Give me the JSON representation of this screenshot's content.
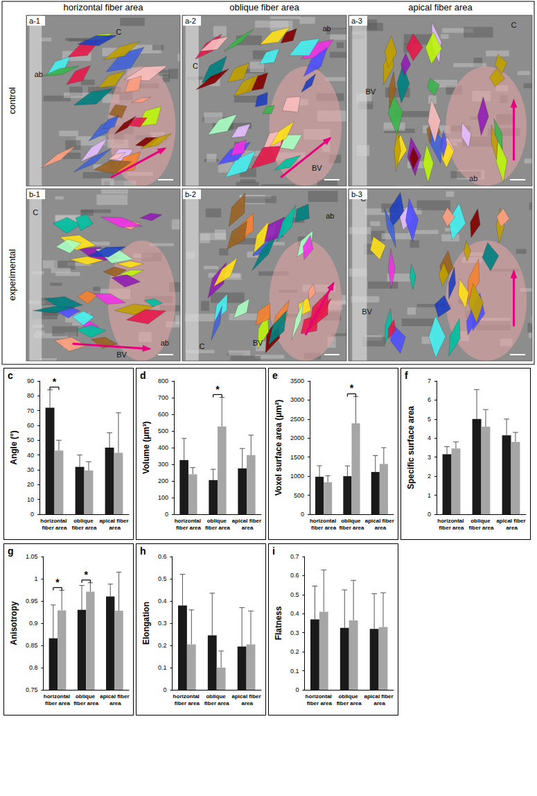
{
  "figure": {
    "columns": [
      "horizontal fiber area",
      "oblique fiber area",
      "apical fiber area"
    ],
    "rows": [
      "control",
      "experimental"
    ],
    "panels": [
      {
        "id": "a-1",
        "labels": [
          "C",
          "ab"
        ]
      },
      {
        "id": "a-2",
        "labels": [
          "C",
          "ab",
          "BV"
        ]
      },
      {
        "id": "a-3",
        "labels": [
          "C",
          "BV",
          "ab"
        ]
      },
      {
        "id": "b-1",
        "labels": [
          "C",
          "BV",
          "ab"
        ]
      },
      {
        "id": "b-2",
        "labels": [
          "C",
          "BV",
          "ab"
        ]
      },
      {
        "id": "b-3",
        "labels": [
          "C",
          "BV"
        ]
      }
    ]
  },
  "chart_data": [
    {
      "type": "bar",
      "panel_label": "c",
      "ylabel": "Angle (°)",
      "categories": [
        "horizontal fiber area",
        "oblique fiber area",
        "apical fiber area"
      ],
      "series": [
        {
          "name": "control",
          "color": "#1a1a1a",
          "values": [
            72,
            32,
            45
          ],
          "errors": [
            12,
            8,
            10
          ]
        },
        {
          "name": "experimental",
          "color": "#a6a6a6",
          "values": [
            43,
            29.5,
            41.5
          ],
          "errors": [
            7,
            6,
            27
          ]
        }
      ],
      "ylim": [
        0,
        90
      ],
      "yticks": [
        0,
        10,
        20,
        30,
        40,
        50,
        60,
        70,
        80,
        90
      ],
      "annotations": [
        {
          "text": "*",
          "category": "horizontal fiber area"
        }
      ]
    },
    {
      "type": "bar",
      "panel_label": "d",
      "ylabel": "Volume (μm³)",
      "categories": [
        "horizontal fiber area",
        "oblique fiber area",
        "apical fiber area"
      ],
      "series": [
        {
          "name": "control",
          "color": "#1a1a1a",
          "values": [
            325,
            205,
            275
          ],
          "errors": [
            130,
            65,
            120
          ]
        },
        {
          "name": "experimental",
          "color": "#a6a6a6",
          "values": [
            240,
            527,
            355
          ],
          "errors": [
            40,
            175,
            120
          ]
        }
      ],
      "ylim": [
        0,
        800
      ],
      "yticks": [
        0,
        100,
        200,
        300,
        400,
        500,
        600,
        700,
        800
      ],
      "annotations": [
        {
          "text": "*",
          "category": "oblique fiber area"
        }
      ]
    },
    {
      "type": "bar",
      "panel_label": "e",
      "ylabel": "Voxel surface area (μm²)",
      "categories": [
        "horizontal fiber area",
        "oblique fiber area",
        "apical fiber area"
      ],
      "series": [
        {
          "name": "control",
          "color": "#1a1a1a",
          "values": [
            985,
            1000,
            1110
          ],
          "errors": [
            290,
            270,
            430
          ]
        },
        {
          "name": "experimental",
          "color": "#a6a6a6",
          "values": [
            840,
            2390,
            1320
          ],
          "errors": [
            170,
            700,
            430
          ]
        }
      ],
      "ylim": [
        0,
        3500
      ],
      "yticks": [
        0,
        500,
        1000,
        1500,
        2000,
        2500,
        3000,
        3500
      ],
      "annotations": [
        {
          "text": "*",
          "category": "oblique fiber area"
        }
      ]
    },
    {
      "type": "bar",
      "panel_label": "f",
      "ylabel": "Specific surface area",
      "categories": [
        "horizontal fiber area",
        "oblique fiber area",
        "apical fiber area"
      ],
      "series": [
        {
          "name": "control",
          "color": "#1a1a1a",
          "values": [
            3.15,
            5.0,
            4.15
          ],
          "errors": [
            0.4,
            1.55,
            0.85
          ]
        },
        {
          "name": "experimental",
          "color": "#a6a6a6",
          "values": [
            3.45,
            4.6,
            3.8
          ],
          "errors": [
            0.35,
            0.9,
            0.5
          ]
        }
      ],
      "ylim": [
        0,
        7
      ],
      "yticks": [
        0,
        1,
        2,
        3,
        4,
        5,
        6,
        7
      ],
      "annotations": []
    },
    {
      "type": "bar",
      "panel_label": "g",
      "ylabel": "Anisotropy",
      "categories": [
        "horizontal fiber area",
        "oblique fiber area",
        "apical fiber area"
      ],
      "series": [
        {
          "name": "control",
          "color": "#1a1a1a",
          "values": [
            0.866,
            0.93,
            0.96
          ],
          "errors": [
            0.075,
            0.055,
            0.028
          ]
        },
        {
          "name": "experimental",
          "color": "#a6a6a6",
          "values": [
            0.929,
            0.971,
            0.928
          ],
          "errors": [
            0.045,
            0.02,
            0.087
          ]
        }
      ],
      "ylim": [
        0.75,
        1.05
      ],
      "yticks": [
        0.75,
        0.8,
        0.85,
        0.9,
        0.95,
        1,
        1.05
      ],
      "annotations": [
        {
          "text": "*",
          "category": "horizontal fiber area"
        },
        {
          "text": "*",
          "category": "oblique fiber area"
        }
      ]
    },
    {
      "type": "bar",
      "panel_label": "h",
      "ylabel": "Elongation",
      "categories": [
        "horizontal fiber area",
        "oblique fiber area",
        "apical fiber area"
      ],
      "series": [
        {
          "name": "control",
          "color": "#1a1a1a",
          "values": [
            0.38,
            0.245,
            0.195
          ],
          "errors": [
            0.14,
            0.19,
            0.175
          ]
        },
        {
          "name": "experimental",
          "color": "#a6a6a6",
          "values": [
            0.205,
            0.1,
            0.205
          ],
          "errors": [
            0.155,
            0.075,
            0.15
          ]
        }
      ],
      "ylim": [
        0,
        0.6
      ],
      "yticks": [
        0,
        0.1,
        0.2,
        0.3,
        0.4,
        0.5,
        0.6
      ],
      "annotations": []
    },
    {
      "type": "bar",
      "panel_label": "i",
      "ylabel": "Flatness",
      "categories": [
        "horizontal fiber area",
        "oblique fiber area",
        "apical fiber area"
      ],
      "series": [
        {
          "name": "control",
          "color": "#1a1a1a",
          "values": [
            0.37,
            0.325,
            0.32
          ],
          "errors": [
            0.175,
            0.2,
            0.185
          ]
        },
        {
          "name": "experimental",
          "color": "#a6a6a6",
          "values": [
            0.41,
            0.365,
            0.33
          ],
          "errors": [
            0.22,
            0.21,
            0.18
          ]
        }
      ],
      "ylim": [
        0,
        0.7
      ],
      "yticks": [
        0,
        0.1,
        0.2,
        0.3,
        0.4,
        0.5,
        0.6,
        0.7
      ],
      "annotations": []
    }
  ]
}
